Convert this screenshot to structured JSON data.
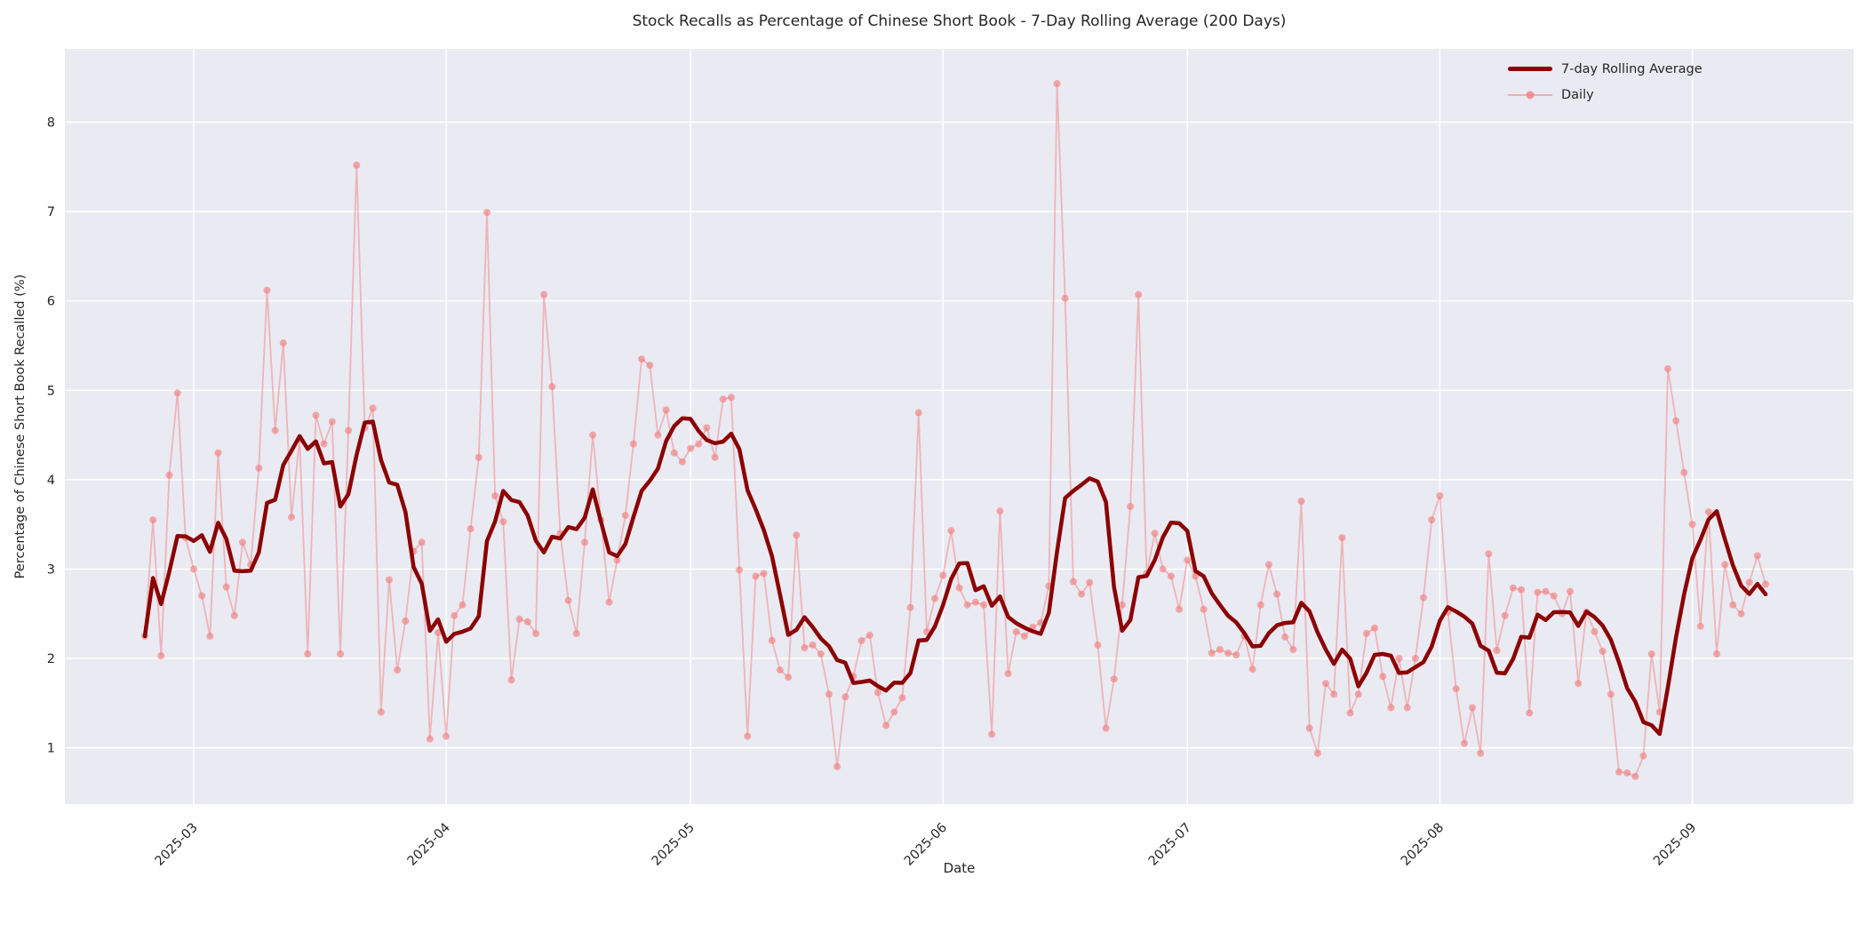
{
  "title": "Stock Recalls as Percentage of Chinese Short Book - 7-Day Rolling Average (200 Days)",
  "axes": {
    "x_label": "Date",
    "y_label": "Percentage of Chinese Short Book Recalled (%)",
    "x_tick_labels": [
      "2025-03",
      "2025-04",
      "2025-05",
      "2025-06",
      "2025-07",
      "2025-08",
      "2025-09"
    ],
    "y_tick_labels": [
      "1",
      "2",
      "3",
      "4",
      "5",
      "6",
      "7",
      "8"
    ],
    "grid": "on",
    "grid_color": "#ffffff",
    "plot_background": "#eaeaf2",
    "figure_background": "#ffffff",
    "text_color": "#262626"
  },
  "legend": {
    "position": "upper right",
    "items": [
      {
        "label": "7-day Rolling Average",
        "color": "#8b0000",
        "style": "thick-line"
      },
      {
        "label": "Daily",
        "color": "#f08080",
        "style": "thin-line-with-marker"
      }
    ]
  },
  "chart_data": {
    "type": "line",
    "title": "Stock Recalls as Percentage of Chinese Short Book - 7-Day Rolling Average (200 Days)",
    "xlabel": "Date",
    "ylabel": "Percentage of Chinese Short Book Recalled (%)",
    "x_start_date": "2025-02-23",
    "x_frequency": "daily",
    "n_points": 200,
    "ylim": [
      0.37,
      8.82
    ],
    "y_ticks": [
      1,
      2,
      3,
      4,
      5,
      6,
      7,
      8
    ],
    "x_ticks": [
      "2025-03",
      "2025-04",
      "2025-05",
      "2025-06",
      "2025-07",
      "2025-08",
      "2025-09"
    ],
    "legend_position": "upper right",
    "series": [
      {
        "name": "7-day Rolling Average",
        "color": "#8b0000",
        "line_width": 4.5,
        "derived": "rolling_mean_of_daily",
        "window": 7,
        "min_periods": 1
      },
      {
        "name": "Daily",
        "color": "#f08080",
        "opacity": 0.55,
        "line_width": 1.8,
        "marker": "circle",
        "marker_size": 4
      }
    ],
    "rolling_window": 7,
    "daily_values": [
      2.25,
      3.55,
      2.03,
      4.05,
      4.97,
      3.35,
      3.0,
      2.7,
      2.25,
      4.3,
      2.8,
      2.48,
      3.3,
      3.05,
      4.13,
      6.12,
      4.55,
      5.53,
      3.58,
      4.45,
      2.05,
      4.72,
      4.4,
      4.65,
      2.05,
      4.55,
      7.52,
      4.58,
      4.8,
      1.4,
      2.88,
      1.87,
      2.42,
      3.2,
      3.3,
      1.1,
      2.29,
      1.13,
      2.48,
      2.6,
      3.45,
      4.25,
      6.99,
      3.82,
      3.53,
      1.76,
      2.44,
      2.41,
      2.28,
      6.07,
      5.04,
      3.4,
      2.65,
      2.28,
      3.3,
      4.5,
      3.55,
      2.63,
      3.1,
      3.6,
      4.4,
      5.35,
      5.28,
      4.5,
      4.78,
      4.3,
      4.2,
      4.35,
      4.4,
      4.58,
      4.25,
      4.9,
      4.92,
      2.99,
      1.13,
      2.92,
      2.95,
      2.2,
      1.87,
      1.79,
      3.38,
      2.12,
      2.15,
      2.05,
      1.6,
      0.79,
      1.57,
      1.8,
      2.2,
      2.26,
      1.62,
      1.25,
      1.4,
      1.56,
      2.57,
      4.75,
      2.3,
      2.67,
      2.93,
      3.43,
      2.79,
      2.6,
      2.63,
      2.6,
      1.15,
      3.65,
      1.83,
      2.3,
      2.25,
      2.35,
      2.4,
      2.81,
      8.43,
      6.03,
      2.86,
      2.72,
      2.85,
      2.15,
      1.22,
      1.77,
      2.6,
      3.7,
      6.07,
      2.95,
      3.4,
      3.0,
      2.92,
      2.55,
      3.1,
      2.92,
      2.55,
      2.06,
      2.1,
      2.06,
      2.04,
      2.25,
      1.88,
      2.6,
      3.05,
      2.72,
      2.24,
      2.1,
      3.76,
      1.22,
      0.94,
      1.72,
      1.6,
      3.35,
      1.39,
      1.6,
      2.28,
      2.34,
      1.8,
      1.45,
      2.0,
      1.45,
      2.0,
      2.68,
      3.55,
      3.82,
      2.52,
      1.66,
      1.05,
      1.45,
      0.94,
      3.17,
      2.09,
      2.48,
      2.79,
      2.77,
      1.39,
      2.74,
      2.75,
      2.7,
      2.5,
      2.75,
      1.72,
      2.52,
      2.3,
      2.08,
      1.6,
      0.73,
      0.72,
      0.68,
      0.91,
      2.05,
      1.4,
      5.24,
      4.66,
      4.08,
      3.5,
      2.36,
      3.64,
      2.05,
      3.05,
      2.6,
      2.5,
      2.85,
      3.15,
      2.83
    ]
  }
}
